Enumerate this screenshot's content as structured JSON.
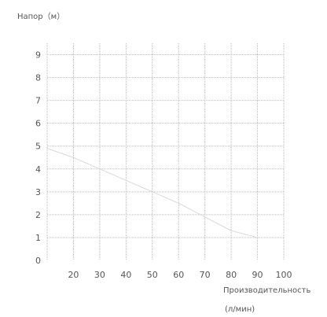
{
  "chart_data": {
    "type": "line",
    "ylabel": "Напор（м）",
    "xlabel": "Производительность",
    "xunit": "(л/мин)",
    "x_ticks": [
      20,
      30,
      40,
      50,
      60,
      70,
      80,
      90,
      100
    ],
    "y_ticks": [
      0,
      1,
      2,
      3,
      4,
      5,
      6,
      7,
      8,
      9
    ],
    "xlim": [
      10,
      100
    ],
    "ylim": [
      0,
      9.5
    ],
    "grid": true,
    "series": [
      {
        "x": [
          10,
          20,
          30,
          40,
          50,
          60,
          70,
          80,
          90
        ],
        "y": [
          4.9,
          4.5,
          4.0,
          3.5,
          3.0,
          2.5,
          1.9,
          1.3,
          1.0
        ]
      }
    ],
    "line_color": "#d9d9d9",
    "grid_color": "#bdbdbd"
  }
}
